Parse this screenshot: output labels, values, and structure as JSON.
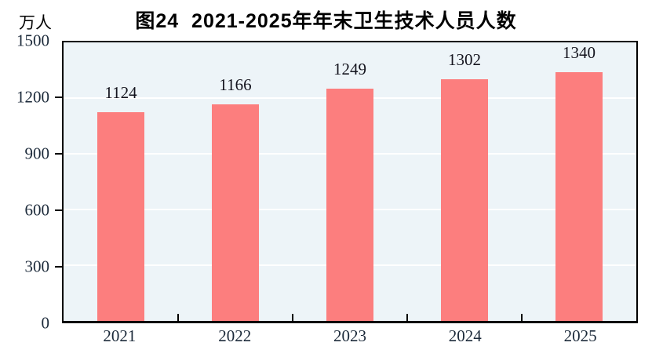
{
  "chart_data": {
    "type": "bar",
    "title": "图24  2021-2025年年末卫生技术人员人数",
    "unit_label": "万人",
    "categories": [
      "2021",
      "2022",
      "2023",
      "2024",
      "2025"
    ],
    "values": [
      1124,
      1166,
      1249,
      1302,
      1340
    ],
    "ylim": [
      0,
      1500
    ],
    "yticks": [
      0,
      300,
      600,
      900,
      1200,
      1500
    ],
    "grid": "horizontal",
    "legend_position": "none",
    "colors": {
      "bar": "#FC7E7E",
      "plot_background": "#EDF4F8",
      "grid_line": "#FFFFFF",
      "axis_line": "#000000",
      "tick_label_text": "#1C2A3A",
      "value_label_text": "#14141E",
      "title_text": "#000000"
    }
  }
}
